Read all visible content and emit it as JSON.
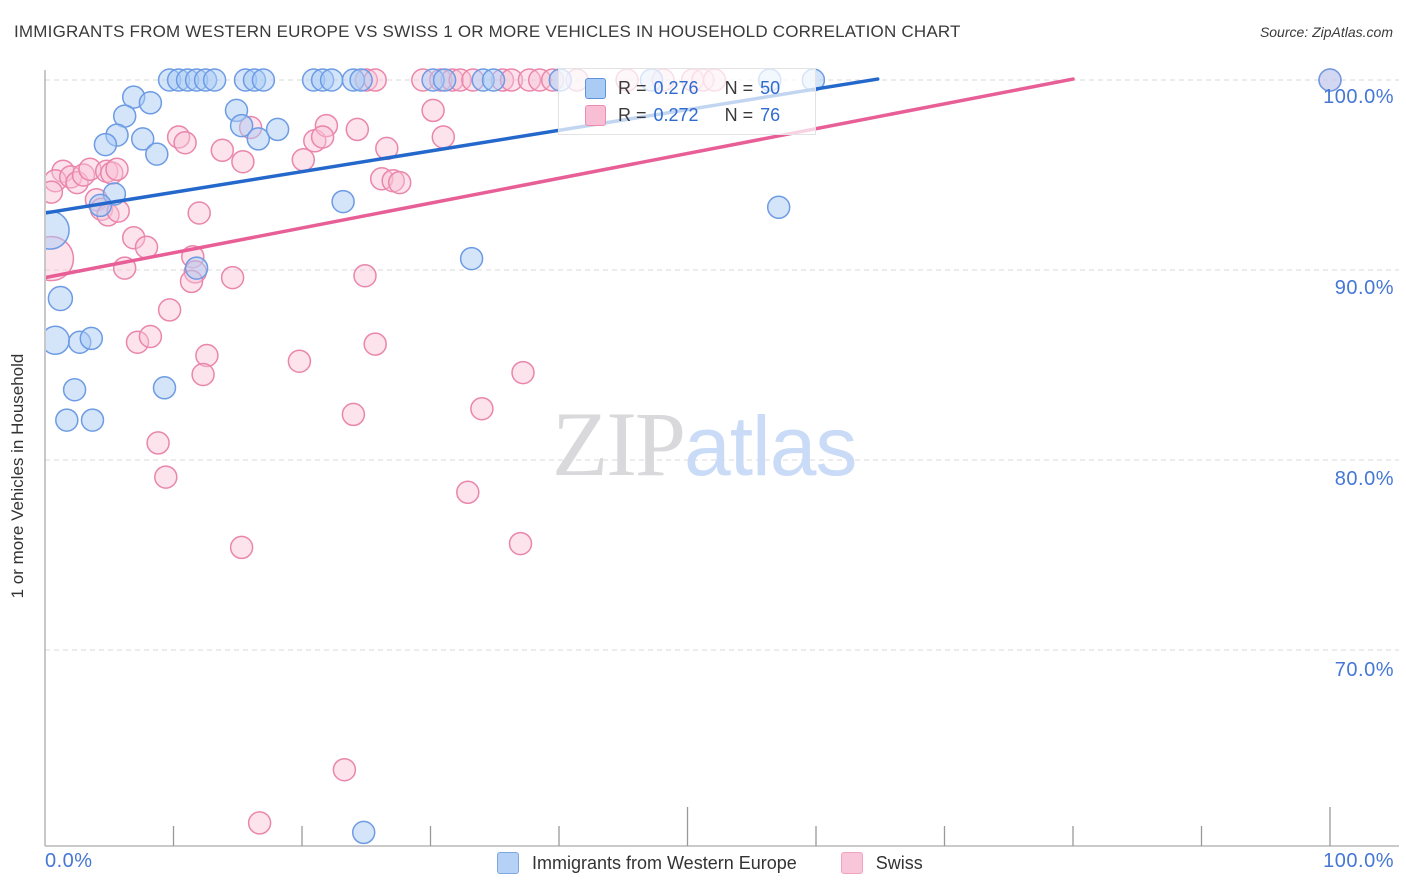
{
  "header": {
    "title": "IMMIGRANTS FROM WESTERN EUROPE VS SWISS 1 OR MORE VEHICLES IN HOUSEHOLD CORRELATION CHART",
    "source": "Source: ZipAtlas.com"
  },
  "watermark": {
    "zip": "ZIP",
    "atlas": "atlas"
  },
  "legend": {
    "rows": [
      {
        "series": "blue",
        "r_label": "R =",
        "r_value": "0.276",
        "n_label": "N =",
        "n_value": "50"
      },
      {
        "series": "pink",
        "r_label": "R =",
        "r_value": "0.272",
        "n_label": "N =",
        "n_value": "76"
      }
    ]
  },
  "axes": {
    "y_title": "1 or more Vehicles in Household",
    "y_tick_labels": [
      "100.0%",
      "90.0%",
      "80.0%",
      "70.0%"
    ],
    "x_min_label": "0.0%",
    "x_max_label": "100.0%"
  },
  "bottom_legend": {
    "items": [
      {
        "label": "Immigrants from Western Europe",
        "series": "blue"
      },
      {
        "label": "Swiss",
        "series": "pink"
      }
    ]
  },
  "chart_data": {
    "type": "scatter",
    "title": "Immigrants from Western Europe vs Swiss 1 or more Vehicles in Household",
    "xlabel": "Immigrants from Western Europe (%)",
    "ylabel": "1 or more Vehicles in Household (%)",
    "xlim": [
      0,
      100
    ],
    "ylim": [
      59.5,
      101
    ],
    "y_gridlines": [
      100,
      90,
      80,
      70
    ],
    "x_ticks_pct": [
      10,
      20,
      30,
      40,
      50,
      60,
      70,
      80,
      90,
      100
    ],
    "grid": true,
    "legend_position": "top-center",
    "series": [
      {
        "name": "Immigrants from Western Europe",
        "r": 0.276,
        "n": 50,
        "stroke": "#6d9be4",
        "fill": "rgba(170,203,245,0.5)",
        "points": [
          [
            9.7,
            100
          ],
          [
            10.4,
            100
          ],
          [
            11.1,
            100
          ],
          [
            11.8,
            100
          ],
          [
            12.5,
            100
          ],
          [
            13.2,
            100
          ],
          [
            15.6,
            100
          ],
          [
            16.3,
            100
          ],
          [
            17.0,
            100
          ],
          [
            20.9,
            100
          ],
          [
            21.6,
            100
          ],
          [
            22.3,
            100
          ],
          [
            24.0,
            100
          ],
          [
            24.6,
            100
          ],
          [
            30.2,
            100
          ],
          [
            31.1,
            100
          ],
          [
            34.1,
            100
          ],
          [
            34.9,
            100
          ],
          [
            40.1,
            100
          ],
          [
            47.2,
            100
          ],
          [
            56.4,
            100
          ],
          [
            59.8,
            100
          ],
          [
            100,
            100
          ],
          [
            6.9,
            99.1
          ],
          [
            8.2,
            98.8
          ],
          [
            6.2,
            98.1
          ],
          [
            5.6,
            97.1
          ],
          [
            4.7,
            96.6
          ],
          [
            7.6,
            96.9
          ],
          [
            8.7,
            96.1
          ],
          [
            14.9,
            98.4
          ],
          [
            15.3,
            97.6
          ],
          [
            16.6,
            96.9
          ],
          [
            18.1,
            97.4
          ],
          [
            23.2,
            93.6
          ],
          [
            57.1,
            93.3
          ],
          [
            5.4,
            94.0
          ],
          [
            4.3,
            93.4
          ],
          [
            0.4,
            92.1,
            19
          ],
          [
            11.8,
            90.1
          ],
          [
            1.2,
            88.5,
            12
          ],
          [
            0.8,
            86.3,
            14
          ],
          [
            2.7,
            86.2
          ],
          [
            3.6,
            86.4
          ],
          [
            2.3,
            83.7
          ],
          [
            9.3,
            83.8
          ],
          [
            1.7,
            82.1
          ],
          [
            3.7,
            82.1
          ],
          [
            33.2,
            90.6
          ],
          [
            24.8,
            60.4
          ]
        ]
      },
      {
        "name": "Swiss",
        "r": 0.272,
        "n": 76,
        "stroke": "#ea86ab",
        "fill": "rgba(249,192,212,0.45)",
        "points": [
          [
            25.0,
            100
          ],
          [
            25.7,
            100
          ],
          [
            29.4,
            100
          ],
          [
            30.8,
            100
          ],
          [
            31.7,
            100
          ],
          [
            32.3,
            100
          ],
          [
            33.3,
            100
          ],
          [
            35.6,
            100
          ],
          [
            36.3,
            100
          ],
          [
            37.7,
            100
          ],
          [
            38.5,
            100
          ],
          [
            39.5,
            100
          ],
          [
            41.4,
            100
          ],
          [
            45.3,
            100
          ],
          [
            48.1,
            100
          ],
          [
            50.4,
            100
          ],
          [
            51.2,
            100
          ],
          [
            52.1,
            100
          ],
          [
            100,
            100
          ],
          [
            1.4,
            95.2
          ],
          [
            0.8,
            94.7
          ],
          [
            2.0,
            94.9
          ],
          [
            2.5,
            94.6
          ],
          [
            3.0,
            95.0
          ],
          [
            3.5,
            95.3
          ],
          [
            0.5,
            94.1
          ],
          [
            4.8,
            95.2
          ],
          [
            5.2,
            95.1
          ],
          [
            5.6,
            95.3
          ],
          [
            4.0,
            93.7
          ],
          [
            4.4,
            93.2
          ],
          [
            4.9,
            92.9
          ],
          [
            5.7,
            93.1
          ],
          [
            12.0,
            93.0
          ],
          [
            10.4,
            97.0
          ],
          [
            10.9,
            96.7
          ],
          [
            13.8,
            96.3
          ],
          [
            15.4,
            95.7
          ],
          [
            16.0,
            97.5
          ],
          [
            20.1,
            95.8
          ],
          [
            21.0,
            96.8
          ],
          [
            21.9,
            97.6
          ],
          [
            21.6,
            97.0
          ],
          [
            24.3,
            97.4
          ],
          [
            26.6,
            96.4
          ],
          [
            26.2,
            94.8
          ],
          [
            27.1,
            94.7
          ],
          [
            30.2,
            98.4
          ],
          [
            31.0,
            97.0
          ],
          [
            27.6,
            94.6
          ],
          [
            0.5,
            90.6,
            22
          ],
          [
            6.9,
            91.7
          ],
          [
            7.9,
            91.2
          ],
          [
            11.5,
            90.7
          ],
          [
            6.2,
            90.1
          ],
          [
            11.7,
            89.9
          ],
          [
            11.4,
            89.4
          ],
          [
            14.6,
            89.6
          ],
          [
            24.9,
            89.7
          ],
          [
            9.7,
            87.9
          ],
          [
            7.2,
            86.2
          ],
          [
            8.2,
            86.5
          ],
          [
            12.6,
            85.5
          ],
          [
            12.3,
            84.5
          ],
          [
            19.8,
            85.2
          ],
          [
            25.7,
            86.1
          ],
          [
            24.0,
            82.4
          ],
          [
            8.8,
            80.9
          ],
          [
            9.4,
            79.1
          ],
          [
            15.3,
            75.4
          ],
          [
            32.9,
            78.3
          ],
          [
            37.2,
            84.6
          ],
          [
            34.0,
            82.7
          ],
          [
            37.0,
            75.6
          ],
          [
            23.3,
            63.7
          ],
          [
            16.7,
            60.9
          ]
        ]
      }
    ],
    "trend_lines": [
      {
        "series": "Immigrants from Western Europe",
        "color": "#2568cc",
        "x1": 0,
        "y1": 93.0,
        "x2": 64.8,
        "y2": 100.05
      },
      {
        "series": "Swiss",
        "color": "#e75f96",
        "x1": 0,
        "y1": 89.6,
        "x2": 80.0,
        "y2": 100.05
      }
    ]
  },
  "colors": {
    "grid": "#d9d9d9",
    "axis": "#aaaaaa",
    "tick": "#999999",
    "axis_label_blue": "#4577d4"
  }
}
